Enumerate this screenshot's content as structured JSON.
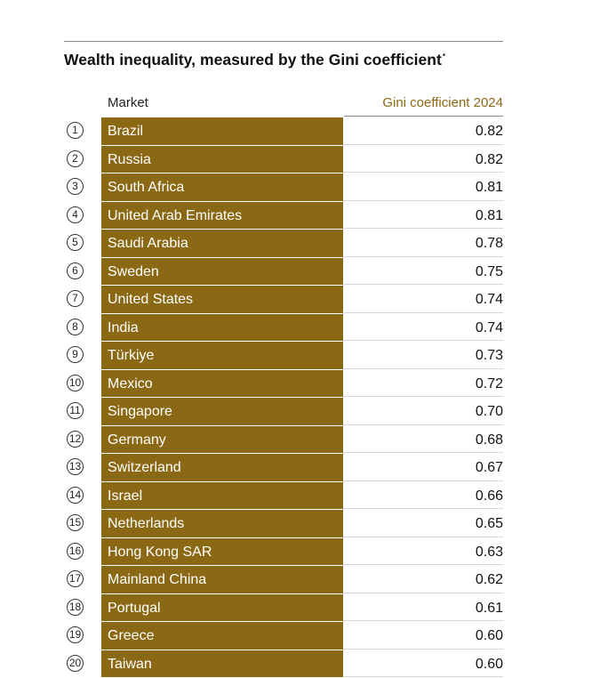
{
  "chart_data": {
    "type": "table",
    "title": "Wealth inequality, measured by the Gini coefficient",
    "title_footnote_mark": "*",
    "columns": [
      "Market",
      "Gini coefficient 2024"
    ],
    "rows": [
      {
        "rank": "1",
        "market": "Brazil",
        "value": "0.82"
      },
      {
        "rank": "2",
        "market": "Russia",
        "value": "0.82"
      },
      {
        "rank": "3",
        "market": "South Africa",
        "value": "0.81"
      },
      {
        "rank": "4",
        "market": "United Arab Emirates",
        "value": "0.81"
      },
      {
        "rank": "5",
        "market": "Saudi Arabia",
        "value": "0.78"
      },
      {
        "rank": "6",
        "market": "Sweden",
        "value": "0.75"
      },
      {
        "rank": "7",
        "market": "United States",
        "value": "0.74"
      },
      {
        "rank": "8",
        "market": "India",
        "value": "0.74"
      },
      {
        "rank": "9",
        "market": "Türkiye",
        "value": "0.73"
      },
      {
        "rank": "10",
        "market": "Mexico",
        "value": "0.72"
      },
      {
        "rank": "11",
        "market": "Singapore",
        "value": "0.70"
      },
      {
        "rank": "12",
        "market": "Germany",
        "value": "0.68"
      },
      {
        "rank": "13",
        "market": "Switzerland",
        "value": "0.67"
      },
      {
        "rank": "14",
        "market": "Israel",
        "value": "0.66"
      },
      {
        "rank": "15",
        "market": "Netherlands",
        "value": "0.65"
      },
      {
        "rank": "16",
        "market": "Hong Kong SAR",
        "value": "0.63"
      },
      {
        "rank": "17",
        "market": "Mainland China",
        "value": "0.62"
      },
      {
        "rank": "18",
        "market": "Portugal",
        "value": "0.61"
      },
      {
        "rank": "19",
        "market": "Greece",
        "value": "0.60"
      },
      {
        "rank": "20",
        "market": "Taiwan",
        "value": "0.60"
      }
    ]
  },
  "colors": {
    "accent": "#8b6914",
    "market_text": "#ffffff",
    "value_text": "#111111",
    "row_rule": "#d6d6d6"
  }
}
